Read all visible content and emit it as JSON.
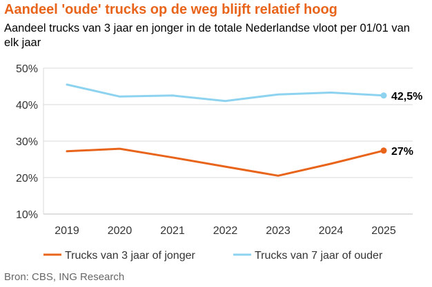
{
  "header": {
    "title": "Aandeel 'oude' trucks op de weg blijft relatief hoog",
    "subtitle": "Aandeel trucks van 3 jaar en jonger in de totale Nederlandse vloot per 01/01 van elk jaar"
  },
  "footer": {
    "source": "Bron: CBS, ING Research"
  },
  "chart_data": {
    "type": "line",
    "title": "Aandeel 'oude' trucks op de weg blijft relatief hoog",
    "subtitle": "Aandeel trucks van 3 jaar en jonger in de totale Nederlandse vloot per 01/01 van elk jaar",
    "xlabel": "",
    "ylabel": "",
    "categories": [
      "2019",
      "2020",
      "2021",
      "2022",
      "2023",
      "2024",
      "2025"
    ],
    "ylim": [
      10,
      50
    ],
    "yticks": [
      10,
      20,
      30,
      40,
      50
    ],
    "ytick_labels": [
      "10%",
      "20%",
      "30%",
      "40%",
      "50%"
    ],
    "grid": true,
    "legend_position": "bottom",
    "series": [
      {
        "name": "Trucks van 3 jaar of jonger",
        "color": "#e8641b",
        "values": [
          27.2,
          27.9,
          25.5,
          23.0,
          20.5,
          23.8,
          27.4
        ],
        "end_label": "27%"
      },
      {
        "name": "Trucks van 7 jaar of ouder",
        "color": "#8dd3f0",
        "values": [
          45.5,
          42.2,
          42.5,
          41.0,
          42.8,
          43.3,
          42.5
        ],
        "end_label": "42,5%"
      }
    ]
  }
}
